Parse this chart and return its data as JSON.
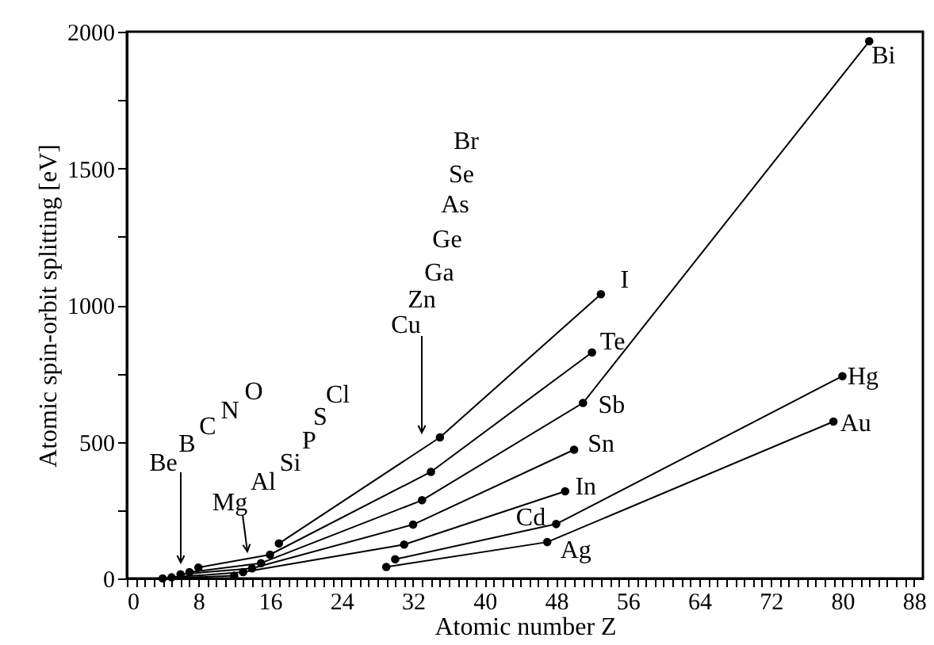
{
  "chart_data": {
    "type": "line",
    "xlabel": "Atomic number Z",
    "ylabel": "Atomic spin-orbit splitting [eV]",
    "xlim": [
      0,
      89
    ],
    "ylim": [
      0,
      2000
    ],
    "xticks": [
      0,
      {
        "value": 1,
        "label": null
      },
      {
        "value": 2,
        "label": null
      },
      {
        "value": 3,
        "label": null
      },
      {
        "value": 4,
        "label": null
      },
      {
        "value": 5,
        "label": null
      },
      {
        "value": 6,
        "label": null
      },
      {
        "value": 7,
        "label": null
      },
      8,
      {
        "value": 9,
        "label": null
      },
      {
        "value": 10,
        "label": null
      },
      {
        "value": 11,
        "label": null
      },
      {
        "value": 12,
        "label": null
      },
      {
        "value": 13,
        "label": null
      },
      {
        "value": 14,
        "label": null
      },
      {
        "value": 15,
        "label": null
      },
      16,
      {
        "value": 17,
        "label": null
      },
      {
        "value": 18,
        "label": null
      },
      {
        "value": 19,
        "label": null
      },
      {
        "value": 20,
        "label": null
      },
      {
        "value": 21,
        "label": null
      },
      {
        "value": 22,
        "label": null
      },
      {
        "value": 23,
        "label": null
      },
      24,
      {
        "value": 25,
        "label": null
      },
      {
        "value": 26,
        "label": null
      },
      {
        "value": 27,
        "label": null
      },
      {
        "value": 28,
        "label": null
      },
      {
        "value": 29,
        "label": null
      },
      {
        "value": 30,
        "label": null
      },
      {
        "value": 31,
        "label": null
      },
      32,
      {
        "value": 33,
        "label": null
      },
      {
        "value": 34,
        "label": null
      },
      {
        "value": 35,
        "label": null
      },
      {
        "value": 36,
        "label": null
      },
      {
        "value": 37,
        "label": null
      },
      {
        "value": 38,
        "label": null
      },
      {
        "value": 39,
        "label": null
      },
      40,
      {
        "value": 41,
        "label": null
      },
      {
        "value": 42,
        "label": null
      },
      {
        "value": 43,
        "label": null
      },
      {
        "value": 44,
        "label": null
      },
      {
        "value": 45,
        "label": null
      },
      {
        "value": 46,
        "label": null
      },
      {
        "value": 47,
        "label": null
      },
      48,
      {
        "value": 49,
        "label": null
      },
      {
        "value": 50,
        "label": null
      },
      {
        "value": 51,
        "label": null
      },
      {
        "value": 52,
        "label": null
      },
      {
        "value": 53,
        "label": null
      },
      {
        "value": 54,
        "label": null
      },
      {
        "value": 55,
        "label": null
      },
      56,
      {
        "value": 57,
        "label": null
      },
      {
        "value": 58,
        "label": null
      },
      {
        "value": 59,
        "label": null
      },
      {
        "value": 60,
        "label": null
      },
      {
        "value": 61,
        "label": null
      },
      {
        "value": 62,
        "label": null
      },
      {
        "value": 63,
        "label": null
      },
      64,
      {
        "value": 65,
        "label": null
      },
      {
        "value": 66,
        "label": null
      },
      {
        "value": 67,
        "label": null
      },
      {
        "value": 68,
        "label": null
      },
      {
        "value": 69,
        "label": null
      },
      {
        "value": 70,
        "label": null
      },
      {
        "value": 71,
        "label": null
      },
      72,
      {
        "value": 73,
        "label": null
      },
      {
        "value": 74,
        "label": null
      },
      {
        "value": 75,
        "label": null
      },
      {
        "value": 76,
        "label": null
      },
      {
        "value": 77,
        "label": null
      },
      {
        "value": 78,
        "label": null
      },
      {
        "value": 79,
        "label": null
      },
      80,
      {
        "value": 81,
        "label": null
      },
      {
        "value": 82,
        "label": null
      },
      {
        "value": 83,
        "label": null
      },
      {
        "value": 84,
        "label": null
      },
      {
        "value": 85,
        "label": null
      },
      {
        "value": 86,
        "label": null
      },
      {
        "value": 87,
        "label": null
      },
      88
    ],
    "yticks": [
      0,
      {
        "value": 250,
        "label": null
      },
      500,
      {
        "value": 750,
        "label": null
      },
      1000,
      {
        "value": 1250,
        "label": null
      },
      1500,
      {
        "value": 1750,
        "label": null
      },
      2000
    ],
    "grid": false,
    "marker": "circle",
    "line_style": "solid",
    "series": [
      {
        "color": "#000000",
        "x": [
          4,
          12
        ],
        "values": [
          0,
          10
        ]
      },
      {
        "color": "#000000",
        "x": [
          5,
          13,
          31,
          49
        ],
        "values": [
          4,
          23,
          124,
          319
        ]
      },
      {
        "color": "#000000",
        "x": [
          6,
          14,
          32,
          50
        ],
        "values": [
          15,
          37,
          197,
          471
        ]
      },
      {
        "color": "#000000",
        "x": [
          7,
          15,
          33,
          51,
          83
        ],
        "values": [
          23,
          56,
          286,
          642,
          1965
        ]
      },
      {
        "color": "#000000",
        "x": [
          8,
          16,
          34,
          52
        ],
        "values": [
          40,
          87,
          390,
          827
        ]
      },
      {
        "color": "#000000",
        "x": [
          17,
          35,
          53
        ],
        "values": [
          128,
          516,
          1040
        ]
      },
      {
        "color": "#000000",
        "x": [
          29,
          47,
          79
        ],
        "values": [
          42,
          133,
          574
        ]
      },
      {
        "color": "#000000",
        "x": [
          30,
          48,
          80
        ],
        "values": [
          70,
          199,
          740
        ]
      }
    ],
    "annotations": [
      "Be",
      "B",
      "C",
      "N",
      "O",
      "Mg",
      "Al",
      "Si",
      "P",
      "S",
      "Cl",
      "Cu",
      "Zn",
      "Ga",
      "Ge",
      "As",
      "Se",
      "Br",
      {
        "text": "I",
        "x": 53,
        "y": 1040
      },
      {
        "text": "Te",
        "x": 52,
        "y": 827
      },
      {
        "text": "Sb",
        "x": 51,
        "y": 642
      },
      {
        "text": "Sn",
        "x": 50,
        "y": 471
      },
      {
        "text": "In",
        "x": 49,
        "y": 319
      },
      {
        "text": "Cd",
        "x": 48,
        "y": 199
      },
      {
        "text": "Ag",
        "x": 47,
        "y": 133
      },
      {
        "text": "Bi",
        "x": 83,
        "y": 1965
      },
      {
        "text": "Hg",
        "x": 80,
        "y": 740
      },
      {
        "text": "Au",
        "x": 79,
        "y": 574
      }
    ]
  }
}
